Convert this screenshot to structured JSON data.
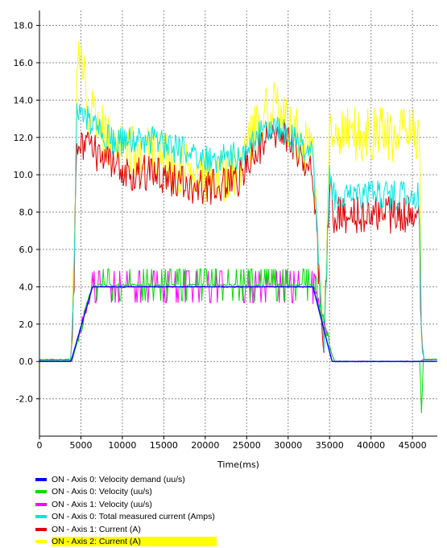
{
  "chart_data": {
    "type": "line",
    "xlabel": "Time(ms)",
    "ylabel": "",
    "xlim": [
      0,
      48000
    ],
    "ylim": [
      -4,
      18.8
    ],
    "xticks": [
      0,
      5000,
      10000,
      15000,
      20000,
      25000,
      30000,
      35000,
      40000,
      45000
    ],
    "yticks": [
      -2.0,
      0.0,
      2.0,
      4.0,
      6.0,
      8.0,
      10.0,
      12.0,
      14.0,
      16.0,
      18.0
    ],
    "xtick_labels": [
      "0",
      "5000",
      "10000",
      "15000",
      "20000",
      "25000",
      "30000",
      "35000",
      "40000",
      "45000"
    ],
    "ytick_labels": [
      "-2.0",
      "0.0",
      "2.0",
      "4.0",
      "6.0",
      "8.0",
      "10.0",
      "12.0",
      "14.0",
      "16.0",
      "18.0"
    ],
    "grid": true,
    "legend_position": "bottom-left",
    "series": [
      {
        "name": "ON  - Axis 0: Velocity demand (uu/s)",
        "color": "#0000ff",
        "noise": 0,
        "x": [
          0,
          3800,
          6400,
          33000,
          35300,
          46000,
          48000
        ],
        "y": [
          0,
          0,
          4.0,
          4.0,
          0,
          0,
          0
        ]
      },
      {
        "name": "ON  - Axis 0: Velocity (uu/s)",
        "color": "#00dd00",
        "noise": 0.35,
        "x": [
          0,
          3600,
          3900,
          6300,
          6600,
          32900,
          33300,
          35200,
          35600,
          45900,
          46100,
          46300,
          48000
        ],
        "y": [
          0.1,
          0.1,
          0,
          3.9,
          4.1,
          4.1,
          3.8,
          0.5,
          0,
          0,
          -2.9,
          0.1,
          0.1
        ]
      },
      {
        "name": "ON  - Axis 1: Velocity (uu/s)",
        "color": "#ff00ff",
        "noise": 0.35,
        "x": [
          0,
          3600,
          3900,
          6300,
          6600,
          32900,
          33300,
          35200,
          35600,
          45900,
          46200,
          48000
        ],
        "y": [
          0.1,
          0.1,
          0,
          3.9,
          4.0,
          4.0,
          3.7,
          0.5,
          0,
          0,
          0.1,
          0.1
        ]
      },
      {
        "name": "ON  - Axis 0: Total measured current (Amps)",
        "color": "#00e5e5",
        "noise": 0.8,
        "x": [
          0,
          3800,
          4200,
          4500,
          9000,
          14000,
          20000,
          24000,
          27500,
          30000,
          33000,
          34300,
          35000,
          35500,
          45800,
          46100,
          46400,
          48000
        ],
        "y": [
          0.05,
          0.05,
          5.0,
          13.5,
          11.8,
          11.8,
          10.8,
          11.0,
          12.5,
          12.2,
          11.0,
          0.3,
          10.0,
          8.9,
          8.9,
          1.5,
          0.1,
          0.1
        ]
      },
      {
        "name": "ON  - Axis 1: Current (A)",
        "color": "#dd0000",
        "noise": 1.0,
        "x": [
          0,
          3800,
          4200,
          4500,
          9000,
          14000,
          20000,
          24000,
          27500,
          30000,
          33000,
          34300,
          35000,
          35500,
          45800,
          46100,
          46400,
          48000
        ],
        "y": [
          0.05,
          0.05,
          5.0,
          12.0,
          10.3,
          10.0,
          9.2,
          9.8,
          12.0,
          11.8,
          10.0,
          0.2,
          9.8,
          7.85,
          7.85,
          1.0,
          0.1,
          0.1
        ]
      },
      {
        "name": "ON  - Axis 2: Current (A)",
        "color": "#ffff00",
        "noise": 1.5,
        "x": [
          0,
          3800,
          4200,
          4600,
          6000,
          9000,
          14000,
          20000,
          24000,
          27500,
          30000,
          33000,
          34300,
          35000,
          35400,
          45800,
          46100,
          46400,
          48000
        ],
        "y": [
          0.05,
          0.05,
          6.0,
          17.0,
          13.5,
          11.3,
          11.0,
          9.8,
          10.2,
          13.8,
          13.0,
          10.8,
          0.3,
          12.5,
          12.15,
          12.15,
          1.2,
          0.1,
          0.1
        ]
      }
    ]
  },
  "legend": {
    "items": [
      {
        "label": "ON  - Axis 0: Velocity demand (uu/s)",
        "color": "#0000ff",
        "highlight": false
      },
      {
        "label": "ON  - Axis 0: Velocity (uu/s)",
        "color": "#00dd00",
        "highlight": false
      },
      {
        "label": "ON  - Axis 1: Velocity (uu/s)",
        "color": "#ff00ff",
        "highlight": false
      },
      {
        "label": "ON  - Axis 0: Total measured current (Amps)",
        "color": "#00e5e5",
        "highlight": false
      },
      {
        "label": "ON  - Axis 1: Current (A)",
        "color": "#dd0000",
        "highlight": false
      },
      {
        "label": "ON  - Axis 2: Current (A)",
        "color": "#ffff00",
        "highlight": true
      }
    ]
  }
}
